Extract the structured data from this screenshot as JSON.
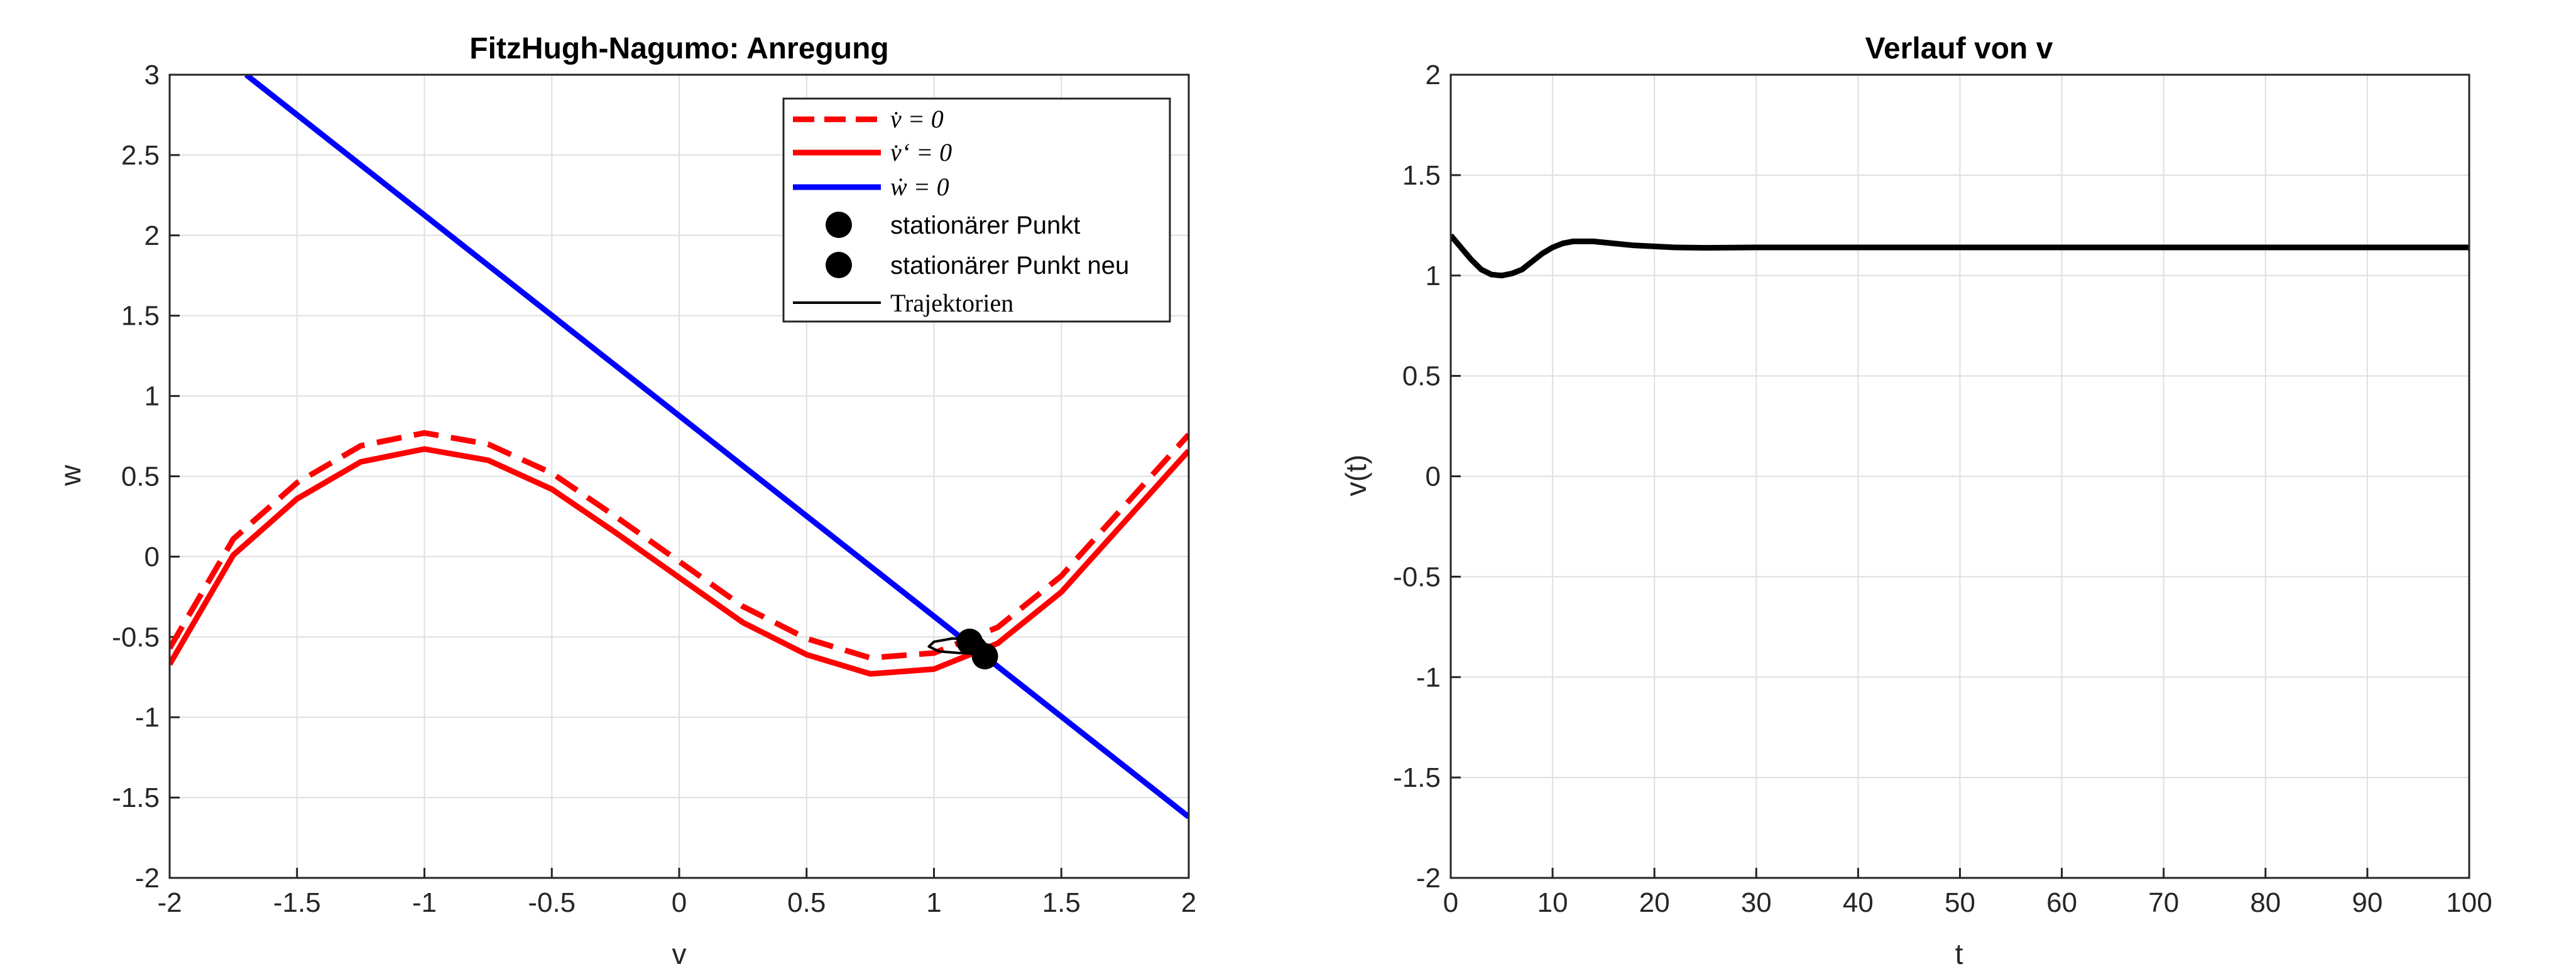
{
  "chart_data": [
    {
      "type": "line",
      "title": "FitzHugh-Nagumo: Anregung",
      "xlabel": "v",
      "ylabel": "w",
      "xlim": [
        -2,
        2
      ],
      "ylim": [
        -2,
        3
      ],
      "xticks": [
        "-2",
        "-1.5",
        "-1",
        "-0.5",
        "0",
        "0.5",
        "1",
        "1.5",
        "2"
      ],
      "yticks": [
        "-2",
        "-1.5",
        "-1",
        "-0.5",
        "0",
        "0.5",
        "1",
        "1.5",
        "2",
        "2.5",
        "3"
      ],
      "grid": true,
      "legend_position": "top-right",
      "series": [
        {
          "name": "v̇ = 0",
          "style": "dashed",
          "color": "#ff0000",
          "x": [
            -2.0,
            -1.75,
            -1.5,
            -1.25,
            -1.0,
            -0.75,
            -0.5,
            -0.25,
            0.0,
            0.25,
            0.5,
            0.75,
            1.0,
            1.25,
            1.5,
            1.75,
            2.0
          ],
          "y": [
            -0.57,
            0.11,
            0.46,
            0.69,
            0.77,
            0.7,
            0.52,
            0.25,
            -0.03,
            -0.31,
            -0.51,
            -0.63,
            -0.6,
            -0.44,
            -0.12,
            0.32,
            0.76
          ]
        },
        {
          "name": "v̇‘ = 0",
          "style": "solid",
          "color": "#ff0000",
          "x": [
            -2.0,
            -1.75,
            -1.5,
            -1.25,
            -1.0,
            -0.75,
            -0.5,
            -0.25,
            0.0,
            0.25,
            0.5,
            0.75,
            1.0,
            1.25,
            1.5,
            1.75,
            2.0
          ],
          "y": [
            -0.67,
            0.01,
            0.36,
            0.59,
            0.67,
            0.6,
            0.42,
            0.15,
            -0.13,
            -0.41,
            -0.61,
            -0.73,
            -0.7,
            -0.54,
            -0.22,
            0.22,
            0.66
          ]
        },
        {
          "name": "ẇ = 0",
          "style": "solid",
          "color": "#0000ff",
          "x": [
            -1.7,
            2.0
          ],
          "y": [
            3.0,
            -1.62
          ]
        },
        {
          "name": "stationärer Punkt",
          "style": "marker",
          "color": "#000000",
          "x": [
            1.14
          ],
          "y": [
            -0.53
          ]
        },
        {
          "name": "stationärer Punkt neu",
          "style": "marker",
          "color": "#000000",
          "x": [
            1.2
          ],
          "y": [
            -0.62
          ]
        },
        {
          "name": "Trajektorien",
          "style": "thin",
          "color": "#000000",
          "x": [
            1.2,
            1.18,
            1.1,
            1.02,
            0.98,
            1.0,
            1.07,
            1.14,
            1.19,
            1.2,
            1.18,
            1.15,
            1.14
          ],
          "y": [
            -0.62,
            -0.6,
            -0.6,
            -0.59,
            -0.56,
            -0.53,
            -0.51,
            -0.51,
            -0.52,
            -0.54,
            -0.55,
            -0.54,
            -0.53
          ]
        }
      ]
    },
    {
      "type": "line",
      "title": "Verlauf von v",
      "xlabel": "t",
      "ylabel": "v(t)",
      "xlim": [
        0,
        100
      ],
      "ylim": [
        -2,
        2
      ],
      "xticks": [
        "0",
        "10",
        "20",
        "30",
        "40",
        "50",
        "60",
        "70",
        "80",
        "90",
        "100"
      ],
      "yticks": [
        "-2",
        "-1.5",
        "-1",
        "-0.5",
        "0",
        "0.5",
        "1",
        "1.5",
        "2"
      ],
      "grid": true,
      "series": [
        {
          "color": "#000000",
          "x": [
            0,
            1,
            2,
            3,
            4,
            5,
            6,
            7,
            8,
            9,
            10,
            11,
            12,
            13,
            14,
            15,
            16,
            18,
            20,
            22,
            25,
            30,
            40,
            50,
            60,
            70,
            80,
            90,
            100
          ],
          "y": [
            1.2,
            1.14,
            1.08,
            1.03,
            1.005,
            1.0,
            1.01,
            1.03,
            1.07,
            1.11,
            1.14,
            1.16,
            1.17,
            1.17,
            1.17,
            1.165,
            1.16,
            1.15,
            1.145,
            1.14,
            1.138,
            1.14,
            1.14,
            1.14,
            1.14,
            1.14,
            1.14,
            1.14,
            1.14
          ]
        }
      ]
    }
  ]
}
